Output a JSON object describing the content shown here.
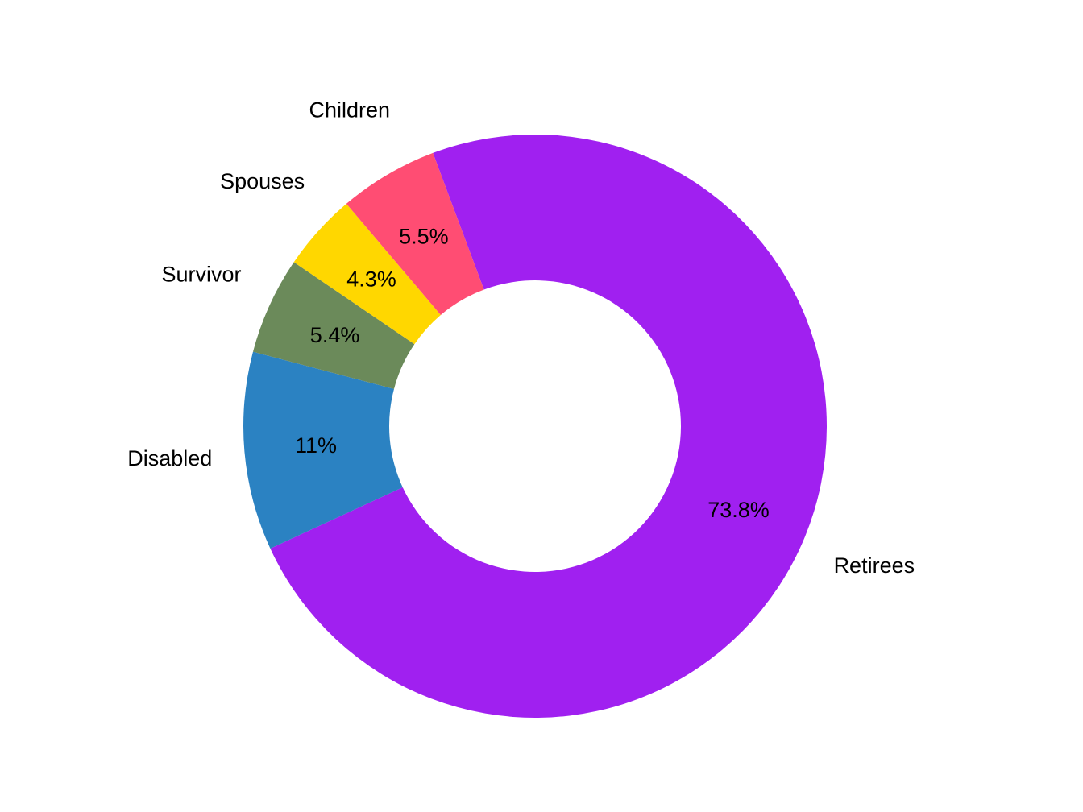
{
  "chart_data": {
    "type": "pie",
    "subtype": "donut",
    "title": "",
    "categories": [
      "Retirees",
      "Disabled",
      "Survivor",
      "Spouses",
      "Children"
    ],
    "values": [
      73.8,
      11,
      5.4,
      4.3,
      5.5
    ],
    "value_labels": [
      "73.8%",
      "11%",
      "5.4%",
      "4.3%",
      "5.5%"
    ],
    "colors": [
      "#A020F0",
      "#2B82C2",
      "#6B8A5A",
      "#FFD700",
      "#FF4D73"
    ],
    "legend": "none",
    "labels_outside": true
  }
}
